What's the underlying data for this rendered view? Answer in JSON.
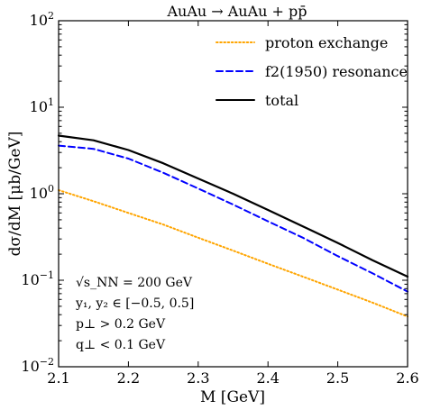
{
  "chart_data": {
    "type": "line",
    "title": "AuAu → AuAu + pp̄",
    "xlabel": "M [GeV]",
    "ylabel": "dσ/dM [μb/GeV]",
    "xlim": [
      2.1,
      2.6
    ],
    "ylim": [
      0.01,
      100
    ],
    "yscale": "log",
    "grid": false,
    "legend_position": "top-right",
    "x_ticks": [
      "2.1",
      "2.2",
      "2.3",
      "2.4",
      "2.5",
      "2.6"
    ],
    "y_ticks": [
      {
        "base": "10",
        "exp": "−2",
        "value": 0.01
      },
      {
        "base": "10",
        "exp": "−1",
        "value": 0.1
      },
      {
        "base": "10",
        "exp": "0",
        "value": 1
      },
      {
        "base": "10",
        "exp": "1",
        "value": 10
      },
      {
        "base": "10",
        "exp": "2",
        "value": 100
      }
    ],
    "x": [
      2.1,
      2.15,
      2.2,
      2.25,
      2.3,
      2.35,
      2.4,
      2.45,
      2.5,
      2.55,
      2.6
    ],
    "series": [
      {
        "name": "proton exchange",
        "color": "#ffa500",
        "style": "dotted",
        "values": [
          1.1,
          0.82,
          0.6,
          0.44,
          0.31,
          0.22,
          0.155,
          0.11,
          0.078,
          0.055,
          0.038
        ]
      },
      {
        "name": "f2(1950) resonance",
        "color": "#0000ff",
        "style": "dashed",
        "values": [
          3.6,
          3.3,
          2.55,
          1.75,
          1.15,
          0.75,
          0.48,
          0.31,
          0.19,
          0.12,
          0.074
        ]
      },
      {
        "name": "total",
        "color": "#000000",
        "style": "solid",
        "values": [
          4.7,
          4.15,
          3.2,
          2.25,
          1.5,
          1.0,
          0.65,
          0.42,
          0.27,
          0.17,
          0.11
        ]
      }
    ],
    "annotations": [
      "√s_NN = 200 GeV",
      "y₁, y₂ ∈ [−0.5, 0.5]",
      "p⊥ > 0.2 GeV",
      "q⊥ < 0.1 GeV"
    ]
  }
}
